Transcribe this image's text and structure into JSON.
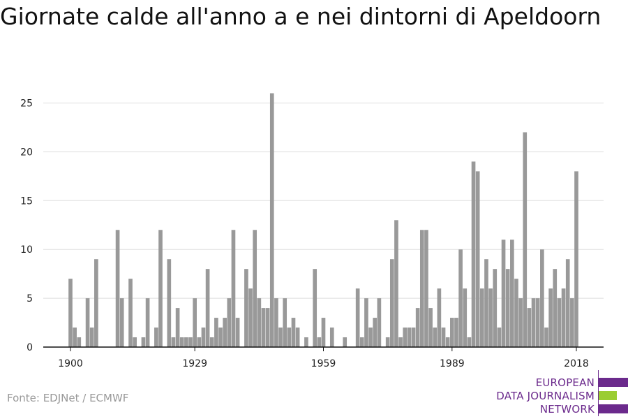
{
  "title": "Giornate calde all'anno a e nei dintorni di Apeldoorn",
  "source": "Fonte: EDJNet / ECMWF",
  "logo": {
    "lines": [
      "EUROPEAN",
      "DATA JOURNALISM",
      "NETWORK"
    ],
    "text_color": "#6b2a8c",
    "bar_colors": [
      "#6b2a8c",
      "#9acd32",
      "#6b2a8c"
    ]
  },
  "chart_data": {
    "type": "bar",
    "title": "Giornate calde all'anno a e nei dintorni di Apeldoorn",
    "xlabel": "",
    "ylabel": "",
    "x_start": 1900,
    "x_end": 2018,
    "x_ticks": [
      1900,
      1929,
      1959,
      1989,
      2018
    ],
    "y_ticks": [
      0,
      5,
      10,
      15,
      20,
      25
    ],
    "ylim": [
      0,
      26
    ],
    "grid": true,
    "bar_color": "#999999",
    "x": [
      1900,
      1901,
      1902,
      1903,
      1904,
      1905,
      1906,
      1907,
      1908,
      1909,
      1910,
      1911,
      1912,
      1913,
      1914,
      1915,
      1916,
      1917,
      1918,
      1919,
      1920,
      1921,
      1922,
      1923,
      1924,
      1925,
      1926,
      1927,
      1928,
      1929,
      1930,
      1931,
      1932,
      1933,
      1934,
      1935,
      1936,
      1937,
      1938,
      1939,
      1940,
      1941,
      1942,
      1943,
      1944,
      1945,
      1946,
      1947,
      1948,
      1949,
      1950,
      1951,
      1952,
      1953,
      1954,
      1955,
      1956,
      1957,
      1958,
      1959,
      1960,
      1961,
      1962,
      1963,
      1964,
      1965,
      1966,
      1967,
      1968,
      1969,
      1970,
      1971,
      1972,
      1973,
      1974,
      1975,
      1976,
      1977,
      1978,
      1979,
      1980,
      1981,
      1982,
      1983,
      1984,
      1985,
      1986,
      1987,
      1988,
      1989,
      1990,
      1991,
      1992,
      1993,
      1994,
      1995,
      1996,
      1997,
      1998,
      1999,
      2000,
      2001,
      2002,
      2003,
      2004,
      2005,
      2006,
      2007,
      2008,
      2009,
      2010,
      2011,
      2012,
      2013,
      2014,
      2015,
      2016,
      2017,
      2018
    ],
    "values": [
      7,
      2,
      1,
      0,
      5,
      2,
      9,
      0,
      0,
      0,
      0,
      12,
      5,
      0,
      7,
      1,
      0,
      1,
      5,
      0,
      2,
      12,
      0,
      9,
      1,
      4,
      1,
      1,
      1,
      5,
      1,
      2,
      8,
      1,
      3,
      2,
      3,
      5,
      12,
      3,
      0,
      8,
      6,
      12,
      5,
      4,
      4,
      26,
      5,
      2,
      5,
      2,
      3,
      2,
      0,
      1,
      0,
      8,
      1,
      3,
      0,
      2,
      0,
      0,
      1,
      0,
      0,
      6,
      1,
      5,
      2,
      3,
      5,
      0,
      1,
      9,
      13,
      1,
      2,
      2,
      2,
      4,
      12,
      12,
      4,
      2,
      6,
      2,
      1,
      3,
      3,
      10,
      6,
      1,
      19,
      18,
      6,
      9,
      6,
      8,
      2,
      11,
      8,
      11,
      7,
      5,
      22,
      4,
      5,
      5,
      10,
      2,
      6,
      8,
      5,
      6,
      9,
      5,
      18
    ]
  }
}
